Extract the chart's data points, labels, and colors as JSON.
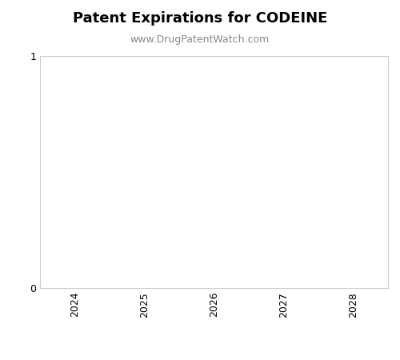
{
  "title": "Patent Expirations for CODEINE",
  "subtitle": "www.DrugPatentWatch.com",
  "title_fontsize": 13,
  "subtitle_fontsize": 9,
  "title_fontweight": "bold",
  "xlim": [
    2023.5,
    2028.5
  ],
  "ylim": [
    0,
    1
  ],
  "xticks": [
    2024,
    2025,
    2026,
    2027,
    2028
  ],
  "yticks": [
    0,
    1
  ],
  "background_color": "#ffffff",
  "axes_color": "#ffffff",
  "tick_label_color": "#000000",
  "subtitle_color": "#888888",
  "spine_color": "#cccccc",
  "tick_fontsize": 9,
  "grid": false
}
